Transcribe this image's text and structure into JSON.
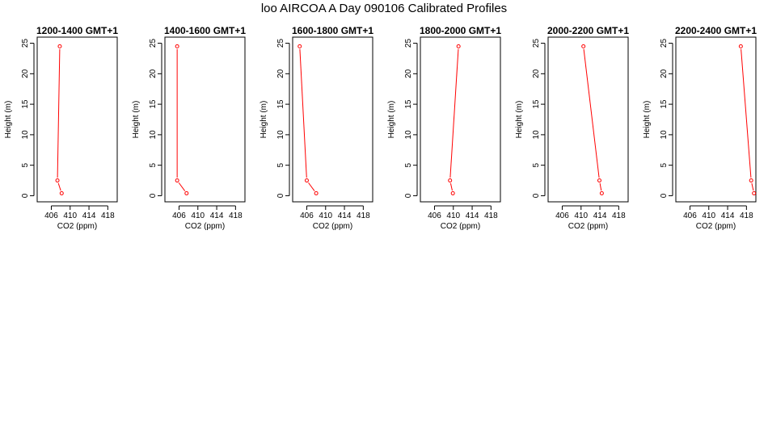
{
  "page_title": "loo AIRCOA A  Day 090106  Calibrated Profiles",
  "chart_data": [
    {
      "type": "line",
      "title": "1200-1400 GMT+1",
      "xlabel": "CO2 (ppm)",
      "ylabel": "Height (m)",
      "xlim": [
        403,
        420
      ],
      "ylim": [
        -1,
        26
      ],
      "xticks": [
        406,
        410,
        414,
        418
      ],
      "yticks": [
        0,
        5,
        10,
        15,
        20,
        25
      ],
      "series": [
        {
          "x": [
            408.2,
            407.3,
            407.8
          ],
          "y": [
            0.4,
            2.5,
            24.5
          ],
          "color": "#ff0000"
        }
      ]
    },
    {
      "type": "line",
      "title": "1400-1600 GMT+1",
      "xlabel": "CO2 (ppm)",
      "ylabel": "Height (m)",
      "xlim": [
        403,
        420
      ],
      "ylim": [
        -1,
        26
      ],
      "xticks": [
        406,
        410,
        414,
        418
      ],
      "yticks": [
        0,
        5,
        10,
        15,
        20,
        25
      ],
      "series": [
        {
          "x": [
            407.6,
            405.6,
            405.6
          ],
          "y": [
            0.4,
            2.5,
            24.5
          ],
          "color": "#ff0000"
        }
      ]
    },
    {
      "type": "line",
      "title": "1600-1800 GMT+1",
      "xlabel": "CO2 (ppm)",
      "ylabel": "Height (m)",
      "xlim": [
        403,
        420
      ],
      "ylim": [
        -1,
        26
      ],
      "xticks": [
        406,
        410,
        414,
        418
      ],
      "yticks": [
        0,
        5,
        10,
        15,
        20,
        25
      ],
      "series": [
        {
          "x": [
            408.0,
            406.0,
            404.5
          ],
          "y": [
            0.4,
            2.5,
            24.5
          ],
          "color": "#ff0000"
        }
      ]
    },
    {
      "type": "line",
      "title": "1800-2000 GMT+1",
      "xlabel": "CO2 (ppm)",
      "ylabel": "Height (m)",
      "xlim": [
        403,
        420
      ],
      "ylim": [
        -1,
        26
      ],
      "xticks": [
        406,
        410,
        414,
        418
      ],
      "yticks": [
        0,
        5,
        10,
        15,
        20,
        25
      ],
      "series": [
        {
          "x": [
            409.9,
            409.3,
            411.1
          ],
          "y": [
            0.4,
            2.5,
            24.5
          ],
          "color": "#ff0000"
        }
      ]
    },
    {
      "type": "line",
      "title": "2000-2200 GMT+1",
      "xlabel": "CO2 (ppm)",
      "ylabel": "Height (m)",
      "xlim": [
        403,
        420
      ],
      "ylim": [
        -1,
        26
      ],
      "xticks": [
        406,
        410,
        414,
        418
      ],
      "yticks": [
        0,
        5,
        10,
        15,
        20,
        25
      ],
      "series": [
        {
          "x": [
            414.4,
            413.9,
            410.5
          ],
          "y": [
            0.4,
            2.5,
            24.5
          ],
          "color": "#ff0000"
        }
      ]
    },
    {
      "type": "line",
      "title": "2200-2400 GMT+1",
      "xlabel": "CO2 (ppm)",
      "ylabel": "Height (m)",
      "xlim": [
        403,
        420
      ],
      "ylim": [
        -1,
        26
      ],
      "xticks": [
        406,
        410,
        414,
        418
      ],
      "yticks": [
        0,
        5,
        10,
        15,
        20,
        25
      ],
      "series": [
        {
          "x": [
            419.6,
            419.0,
            416.8
          ],
          "y": [
            0.4,
            2.5,
            24.5
          ],
          "color": "#ff0000"
        }
      ]
    }
  ]
}
